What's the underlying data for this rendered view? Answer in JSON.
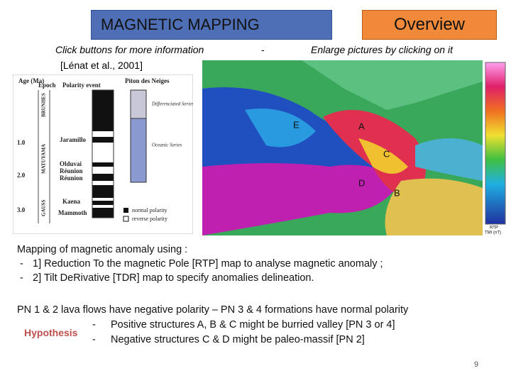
{
  "header": {
    "title": "MAGNETIC MAPPING",
    "button": "Overview",
    "hint_left": "Click buttons for more information",
    "separator": "-",
    "hint_right": "Enlarge pictures by clicking on it",
    "reference": "[Lénat et al., 2001]"
  },
  "column_figure": {
    "age_header": "Age (Ma)",
    "epoch_header": "Epoch",
    "polarity_header": "Polarity event",
    "formation_header": "Piton des Neiges",
    "epochs": [
      "BRUNHES",
      "MATUYAMA",
      "GAUSS"
    ],
    "ages": [
      "1.0",
      "2.0",
      "3.0"
    ],
    "events": [
      "Jaramillo",
      "Olduvai",
      "Réunion",
      "Réunion",
      "Kaena",
      "Mammoth"
    ],
    "series": [
      "Differenciated Series",
      "Oceanic Series"
    ],
    "legend": [
      "normal polarity",
      "reverse polarity"
    ]
  },
  "map_figure": {
    "labels": [
      "E",
      "A",
      "C",
      "D",
      "B"
    ],
    "legend_title": "RTP",
    "legend_unit": "TMI (nT)"
  },
  "body": {
    "intro": "Mapping of magnetic anomaly using :",
    "items": [
      {
        "marker": "-",
        "text": "1] Reduction To the magnetic Pole [RTP] map to analyse magnetic anomaly ;"
      },
      {
        "marker": "-",
        "text": "2] Tilt DeRivative [TDR] map to specify anomalies delineation."
      }
    ],
    "polarity": "PN 1 & 2 lava flows have negative polarity – PN 3 & 4 formations have normal polarity",
    "hypothesis_label": "Hypothesis",
    "hypotheses": [
      {
        "marker": "-",
        "text": "Positive structures A, B & C might be burried valley [PN 3 or 4]"
      },
      {
        "marker": "-",
        "text": "Negative structures C & D might be paleo-massif [PN 2]"
      }
    ]
  },
  "page_number": "9"
}
